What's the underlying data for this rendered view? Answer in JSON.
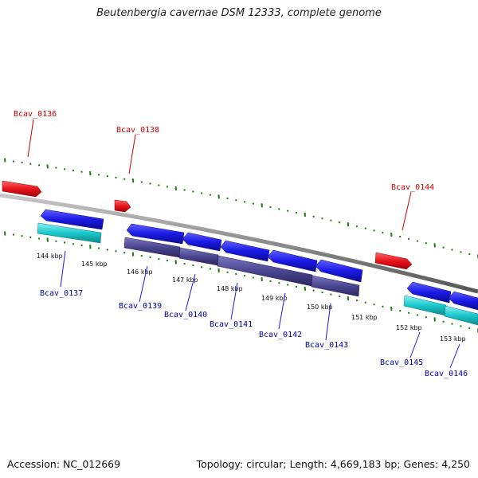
{
  "title": "Beutenbergia cavernae DSM 12333, complete genome",
  "footer": {
    "accession": "Accession: NC_012669",
    "summary": "Topology: circular; Length: 4,669,183 bp; Genes: 4,250"
  },
  "colors": {
    "forward_gene": "#e8141c",
    "reverse_gene": "#1a1ae6",
    "rna_track": "#19c8cc",
    "cds_track": "#3e3a82",
    "forward_label": "#cc0000",
    "reverse_label": "#00009e",
    "tick": "#1f7a12",
    "backbone": "#8c8c8c"
  },
  "scale_ticks": [
    "144 kbp",
    "145 kbp",
    "146 kbp",
    "147 kbp",
    "148 kbp",
    "149 kbp",
    "150 kbp",
    "151 kbp",
    "152 kbp",
    "153 kbp"
  ],
  "genes": {
    "forward": [
      "Bcav_0136",
      "Bcav_0138",
      "Bcav_0144"
    ],
    "reverse": [
      "Bcav_0137",
      "Bcav_0139",
      "Bcav_0140",
      "Bcav_0141",
      "Bcav_0142",
      "Bcav_0143",
      "Bcav_0145",
      "Bcav_0146"
    ]
  }
}
